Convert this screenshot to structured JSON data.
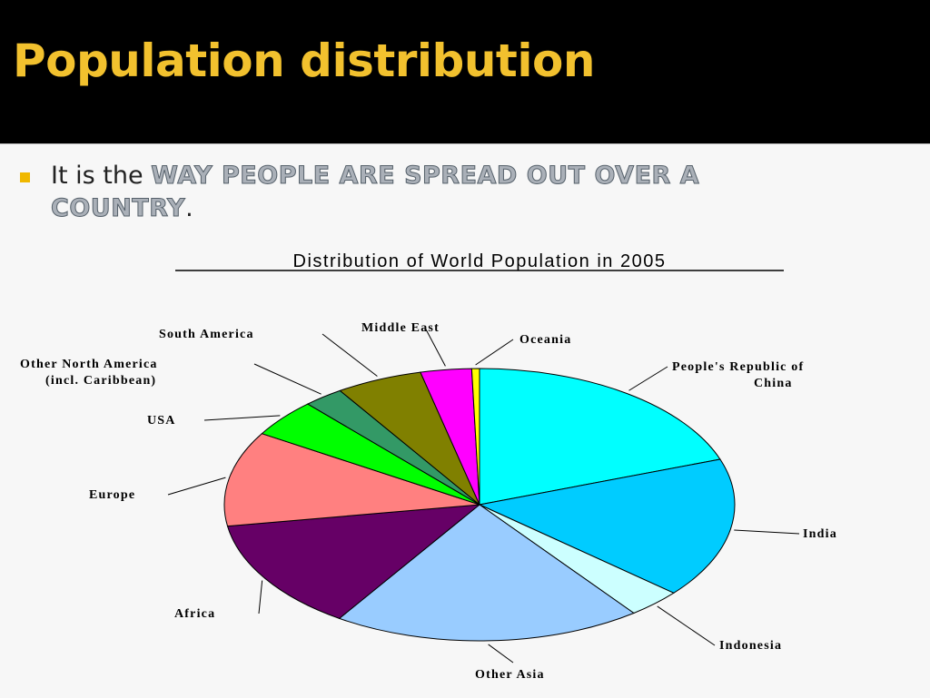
{
  "slide": {
    "title": "Population distribution",
    "bullet_prefix": "It is the ",
    "bullet_highlight_1": "WAY PEOPLE ARE SPREAD OUT OVER A",
    "bullet_highlight_2": "COUNTRY",
    "bullet_suffix": ".",
    "accent_color": "#f2c12e",
    "bullet_color": "#f0b800",
    "background_color": "#000000",
    "content_background": "#f7f7f7",
    "bullet_icon": "square-bullet"
  },
  "chart_data": {
    "type": "pie",
    "title": "Distribution of World Population in 2005",
    "start": "12 o'clock",
    "direction": "clockwise",
    "slices": [
      {
        "label": "People's Republic of China",
        "label_lines": [
          "People's Republic of",
          "China"
        ],
        "value": 20.0,
        "color": "#00ffff"
      },
      {
        "label": "India",
        "label_lines": [
          "India"
        ],
        "value": 17.0,
        "color": "#00ccff"
      },
      {
        "label": "Indonesia",
        "label_lines": [
          "Indonesia"
        ],
        "value": 3.5,
        "color": "#ccffff"
      },
      {
        "label": "Other Asia",
        "label_lines": [
          "Other Asia"
        ],
        "value": 20.0,
        "color": "#99ccff"
      },
      {
        "label": "Africa",
        "label_lines": [
          "Africa"
        ],
        "value": 13.5,
        "color": "#660066"
      },
      {
        "label": "Europe",
        "label_lines": [
          "Europe"
        ],
        "value": 11.5,
        "color": "#ff8080"
      },
      {
        "label": "USA",
        "label_lines": [
          "USA"
        ],
        "value": 4.6,
        "color": "#00ff00"
      },
      {
        "label": "Other North America (incl. Caribbean)",
        "label_lines": [
          "Other North America",
          "(incl. Caribbean)"
        ],
        "value": 2.6,
        "color": "#339966"
      },
      {
        "label": "South America",
        "label_lines": [
          "South America"
        ],
        "value": 5.6,
        "color": "#808000"
      },
      {
        "label": "Middle East",
        "label_lines": [
          "Middle East"
        ],
        "value": 3.3,
        "color": "#ff00ff"
      },
      {
        "label": "Oceania",
        "label_lines": [
          "Oceania"
        ],
        "value": 0.5,
        "color": "#ffff00"
      }
    ]
  }
}
